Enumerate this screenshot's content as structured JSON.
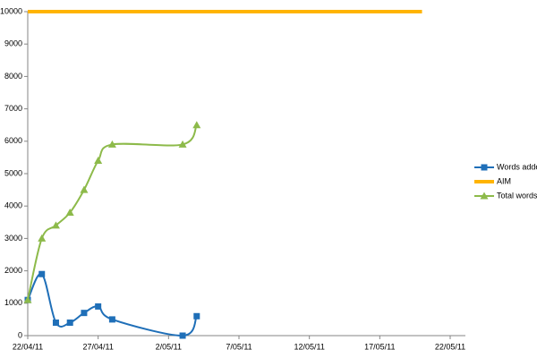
{
  "chart_data": {
    "type": "line",
    "series": [
      {
        "name": "Words added",
        "color": "#1f6fb8",
        "marker": "square",
        "x": [
          "2011-04-22",
          "2011-04-23",
          "2011-04-24",
          "2011-04-25",
          "2011-04-26",
          "2011-04-27",
          "2011-04-28",
          "2011-05-03",
          "2011-05-04"
        ],
        "values": [
          1100,
          1900,
          400,
          400,
          700,
          900,
          500,
          0,
          600
        ]
      },
      {
        "name": "AIM",
        "color": "#ffb400",
        "marker": "none",
        "x": [
          "2011-04-22",
          "2011-05-20"
        ],
        "values": [
          10000,
          10000
        ]
      },
      {
        "name": "Total words",
        "color": "#8dba4a",
        "marker": "triangle",
        "x": [
          "2011-04-22",
          "2011-04-23",
          "2011-04-24",
          "2011-04-25",
          "2011-04-26",
          "2011-04-27",
          "2011-04-28",
          "2011-05-03",
          "2011-05-04"
        ],
        "values": [
          1100,
          3000,
          3400,
          3800,
          4500,
          5400,
          5900,
          5900,
          6500
        ]
      }
    ],
    "xlim": [
      "2011-04-22",
      "2011-05-22"
    ],
    "xticks": [
      {
        "value": "2011-04-22",
        "label": "22/04/11"
      },
      {
        "value": "2011-04-27",
        "label": "27/04/11"
      },
      {
        "value": "2011-05-02",
        "label": "2/05/11"
      },
      {
        "value": "2011-05-07",
        "label": "7/05/11"
      },
      {
        "value": "2011-05-12",
        "label": "12/05/11"
      },
      {
        "value": "2011-05-17",
        "label": "17/05/11"
      },
      {
        "value": "2011-05-22",
        "label": "22/05/11"
      }
    ],
    "ylim": [
      0,
      10000
    ],
    "yticks": [
      0,
      1000,
      2000,
      3000,
      4000,
      5000,
      6000,
      7000,
      8000,
      9000,
      10000
    ],
    "legend": "right",
    "grid": false
  }
}
